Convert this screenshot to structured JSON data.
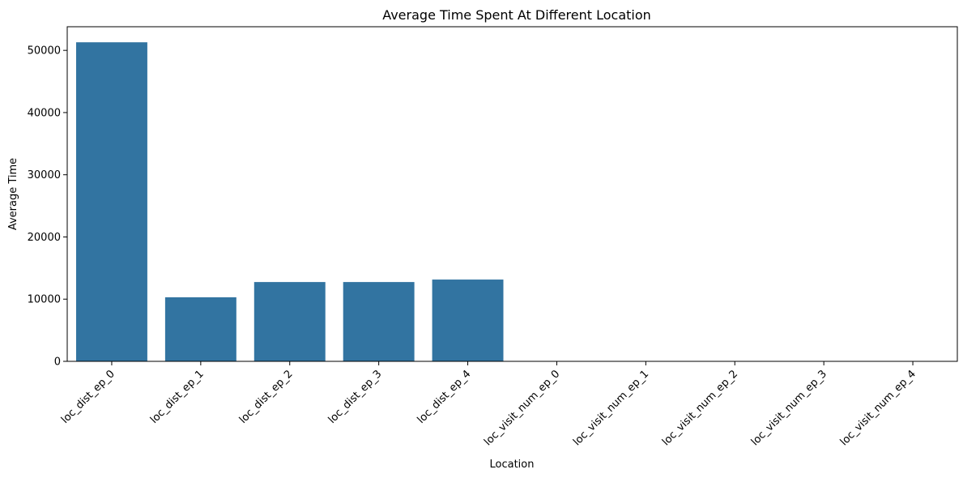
{
  "chart_data": {
    "type": "bar",
    "title": "Average Time Spent At Different Location",
    "xlabel": "Location",
    "ylabel": "Average Time",
    "categories": [
      "loc_dist_ep_0",
      "loc_dist_ep_1",
      "loc_dist_ep_2",
      "loc_dist_ep_3",
      "loc_dist_ep_4",
      "loc_visit_num_ep_0",
      "loc_visit_num_ep_1",
      "loc_visit_num_ep_2",
      "loc_visit_num_ep_3",
      "loc_visit_num_ep_4"
    ],
    "values": [
      51300,
      10300,
      12750,
      12750,
      13150,
      0,
      0,
      0,
      0,
      0
    ],
    "ylim": [
      0,
      53800
    ],
    "yticks": [
      0,
      10000,
      20000,
      30000,
      40000,
      50000
    ],
    "grid": false,
    "legend": "none",
    "bar_color": "#3274a1",
    "axis_color": "#000000"
  }
}
